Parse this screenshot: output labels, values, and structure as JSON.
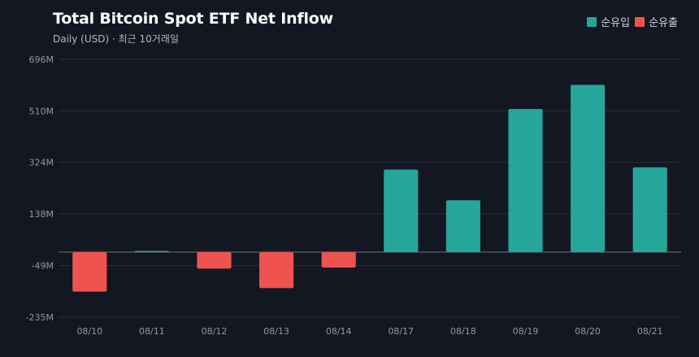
{
  "header": {
    "title": "Total Bitcoin Spot ETF Net Inflow",
    "subtitle": "Daily (USD) · 최근 10거래일"
  },
  "legend": {
    "inflow_label": "순유입",
    "outflow_label": "순유출"
  },
  "colors": {
    "background": "#131722",
    "inflow": "#26a69a",
    "outflow": "#ef5350",
    "grid": "#2a2e39",
    "zero_line": "#5d606b"
  },
  "chart_data": {
    "type": "bar",
    "categories": [
      "08/10",
      "08/11",
      "08/12",
      "08/13",
      "08/14",
      "08/17",
      "08/18",
      "08/19",
      "08/20",
      "08/21"
    ],
    "values": [
      -143,
      3,
      -60,
      -130,
      -56,
      298,
      187,
      517,
      604,
      306
    ],
    "yticks": [
      696,
      510,
      324,
      138,
      -49,
      -235
    ],
    "ytick_labels": [
      "696M",
      "510M",
      "324M",
      "138M",
      "-49M",
      "-235M"
    ],
    "ylim": [
      -235,
      696
    ],
    "grid": true,
    "legend_position": "top-right"
  }
}
